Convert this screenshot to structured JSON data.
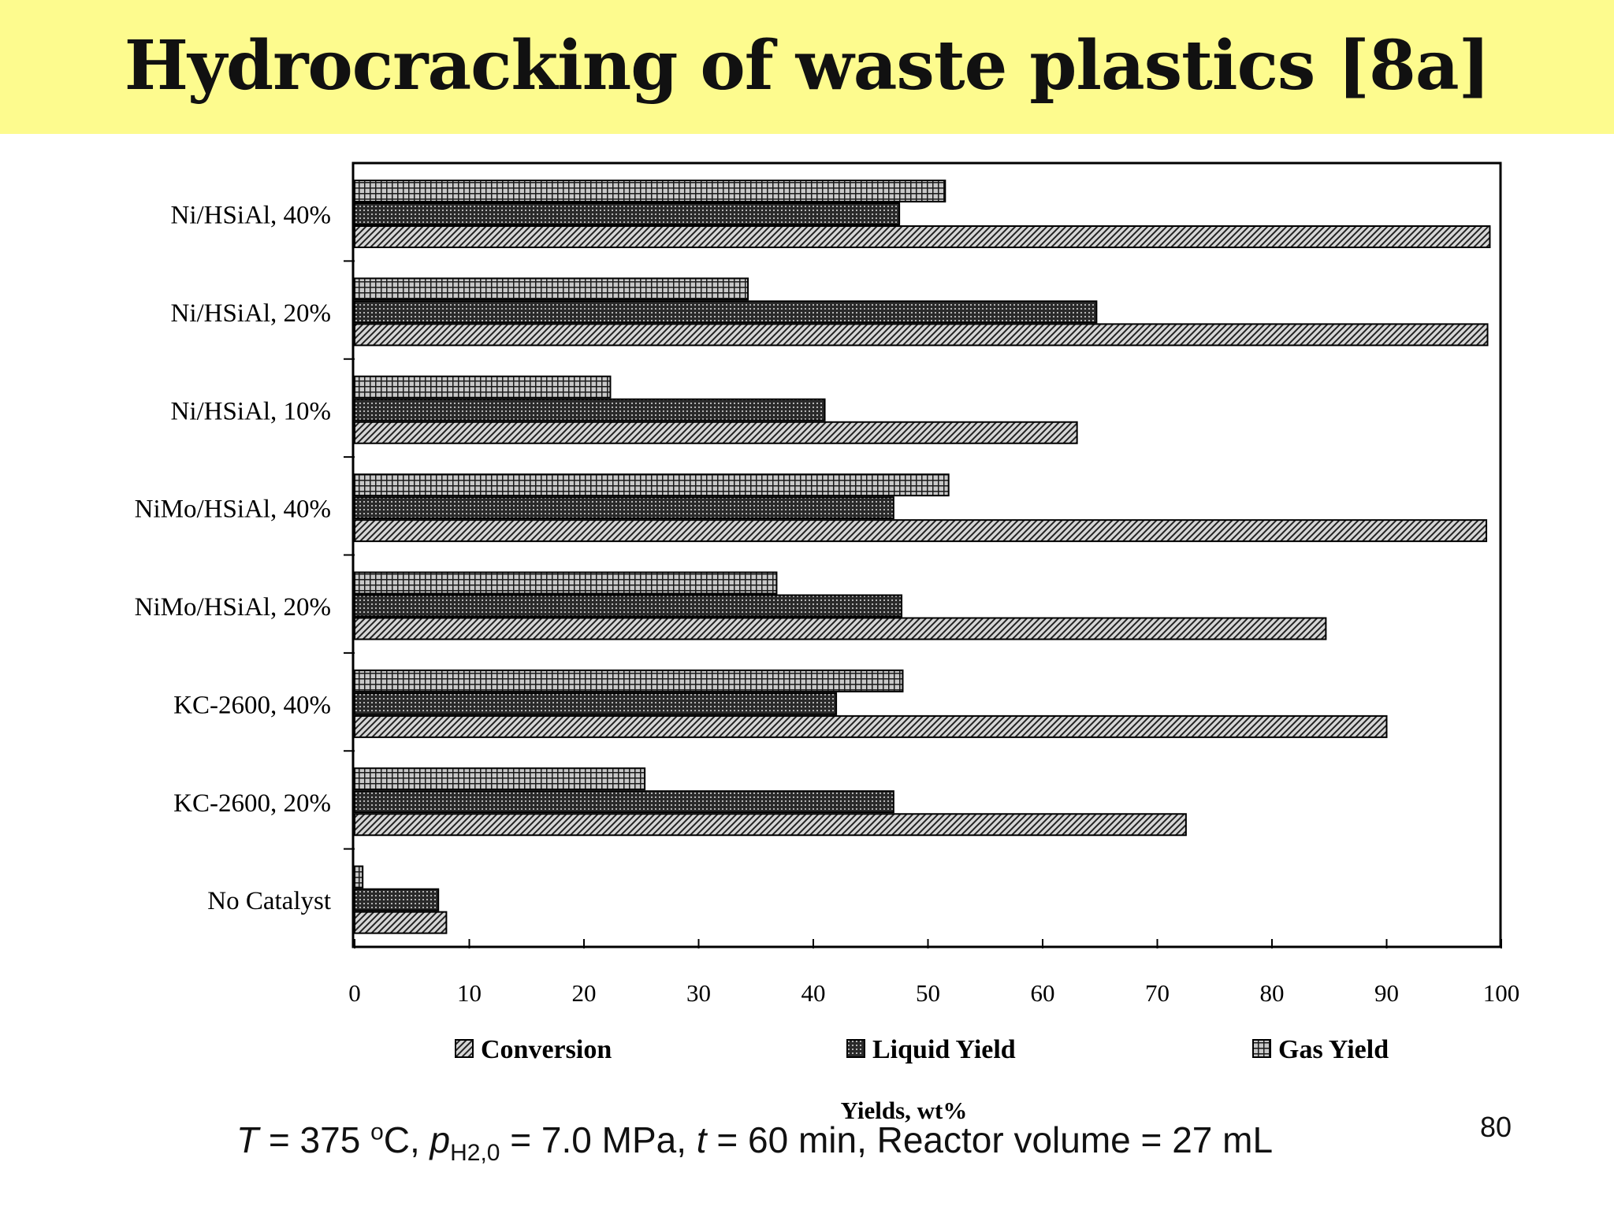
{
  "slide": {
    "title": "Hydrocracking of waste plastics [8a]",
    "page_number": "80",
    "conditions": {
      "T_var": "T",
      "T_eq": " = 375 ",
      "T_sup": "o",
      "T_unit": "C, ",
      "p_var": "p",
      "p_sub": "H2,0",
      "p_rest": " = 7.0 MPa, ",
      "t_var": "t",
      "t_rest": " = 60 min, Reactor volume = 27 mL"
    }
  },
  "colors": {
    "title_bar": "#fdfb8e",
    "conversion_fill": "#bdbdbd",
    "liquid_fill": "#4a4a4a",
    "gas_fill": "#7a7a7a"
  },
  "chart_data": {
    "type": "bar",
    "orientation": "horizontal",
    "xlabel": "Yields, wt%",
    "ylabel": "",
    "xlim": [
      0,
      100
    ],
    "x_ticks": [
      "0",
      "10",
      "20",
      "30",
      "40",
      "50",
      "60",
      "70",
      "80",
      "90",
      "100"
    ],
    "legend_position": "bottom",
    "grid": false,
    "categories": [
      "Ni/HSiAl, 40%",
      "Ni/HSiAl, 20%",
      "Ni/HSiAl, 10%",
      "NiMo/HSiAl, 40%",
      "NiMo/HSiAl, 20%",
      "KC-2600, 40%",
      "KC-2600, 20%",
      "No Catalyst"
    ],
    "series": [
      {
        "name": "Conversion",
        "pattern": "diagonal-hatch",
        "values": [
          99,
          98.8,
          63,
          98.7,
          84.7,
          90,
          72.5,
          8
        ]
      },
      {
        "name": "Liquid Yield",
        "pattern": "dense-dots",
        "values": [
          47.5,
          64.7,
          41,
          47,
          47.7,
          42,
          47,
          7.3
        ]
      },
      {
        "name": "Gas Yield",
        "pattern": "cross-hatch",
        "values": [
          51.5,
          34.3,
          22.3,
          51.8,
          36.8,
          47.8,
          25.3,
          0.7
        ]
      }
    ]
  }
}
